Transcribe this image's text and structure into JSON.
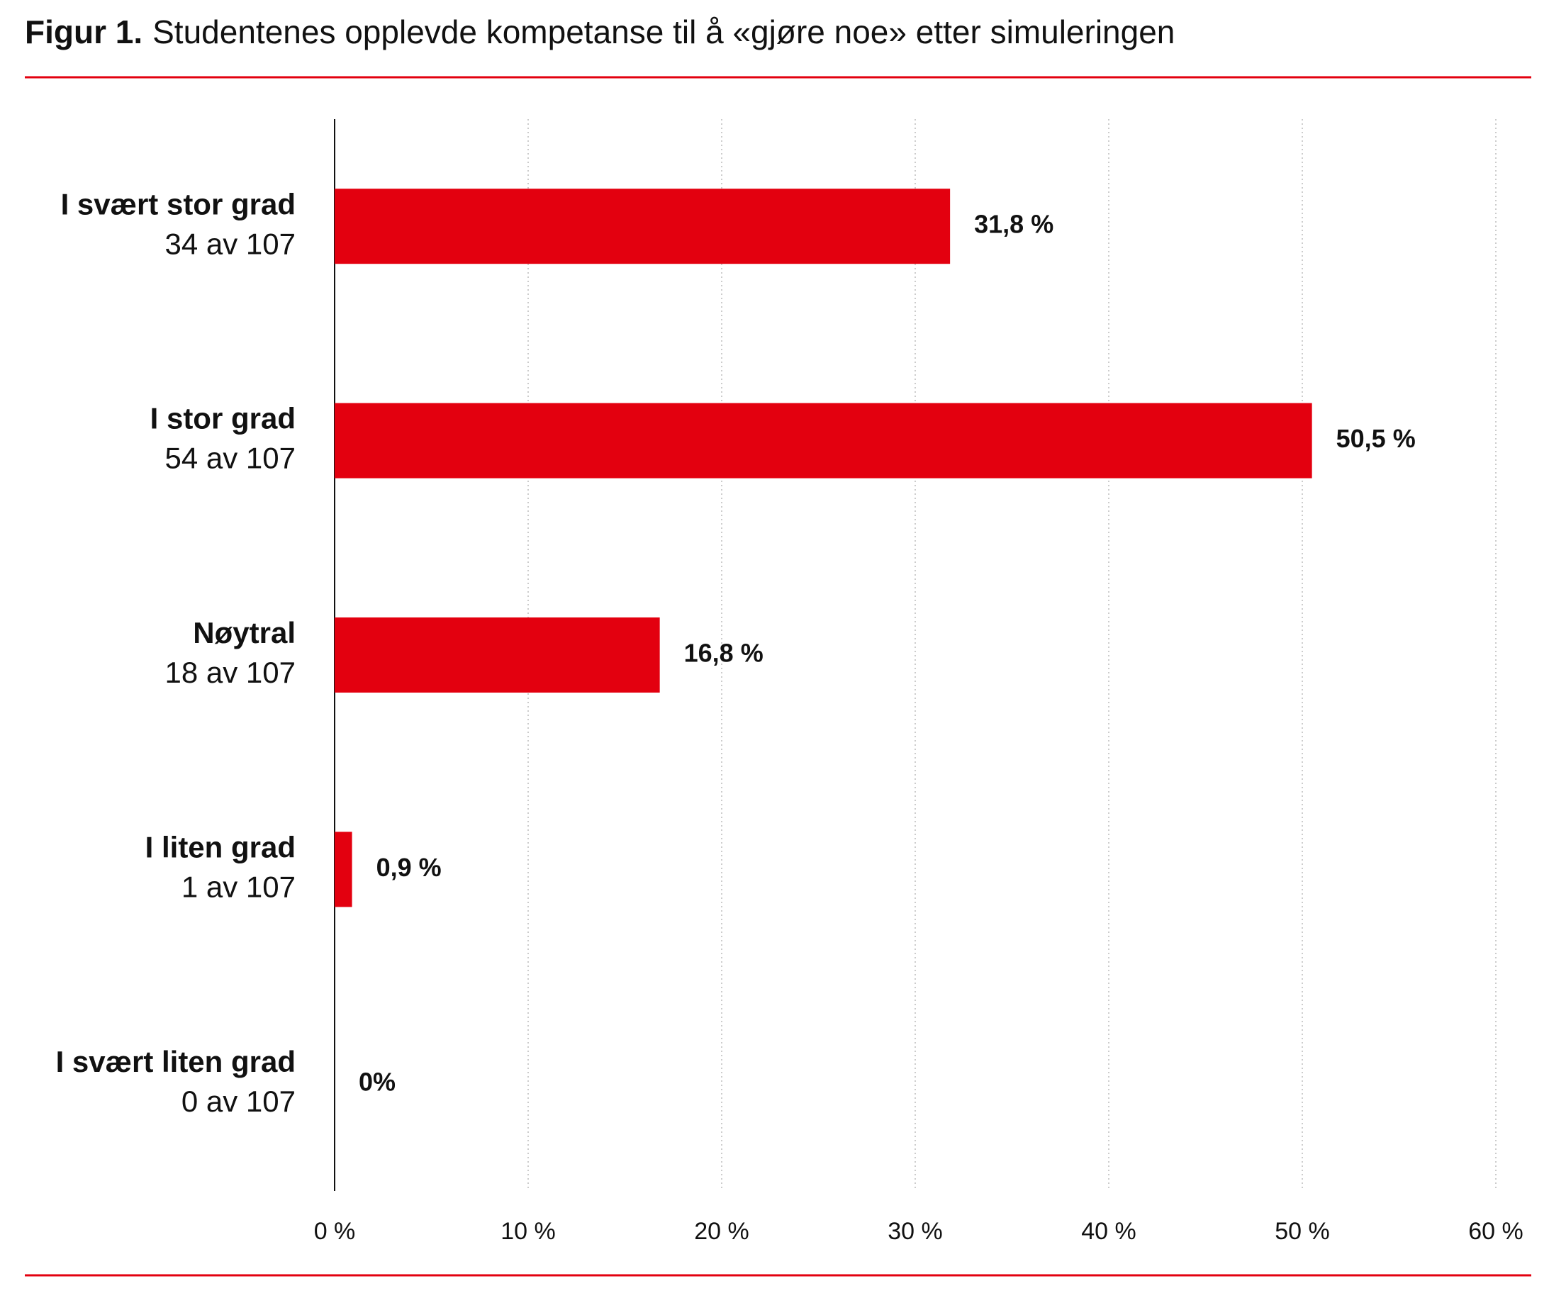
{
  "chart_data": {
    "type": "bar",
    "orientation": "horizontal",
    "title_prefix": "Figur 1.",
    "title": "Studentenes opplevde kompetanse til å «gjøre noe» etter simuleringen",
    "categories": [
      "I svært stor grad",
      "I stor grad",
      "Nøytral",
      "I liten grad",
      "I svært liten grad"
    ],
    "category_sublabels": [
      "34 av 107",
      "54 av 107",
      "18 av 107",
      "1 av 107",
      "0 av 107"
    ],
    "values": [
      31.8,
      50.5,
      16.8,
      0.9,
      0
    ],
    "value_labels": [
      "31,8 %",
      "50,5 %",
      "16,8 %",
      "0,9 %",
      "0%"
    ],
    "color": "#e3000f",
    "xlim": [
      0,
      60
    ],
    "xticks": [
      {
        "value": 0,
        "label": "0 %"
      },
      {
        "value": 10,
        "label": "10 %"
      },
      {
        "value": 20,
        "label": "20 %"
      },
      {
        "value": 30,
        "label": "30 %"
      },
      {
        "value": 40,
        "label": "40 %"
      },
      {
        "value": 50,
        "label": "50 %"
      },
      {
        "value": 60,
        "label": "60 %"
      }
    ],
    "grid": true
  }
}
